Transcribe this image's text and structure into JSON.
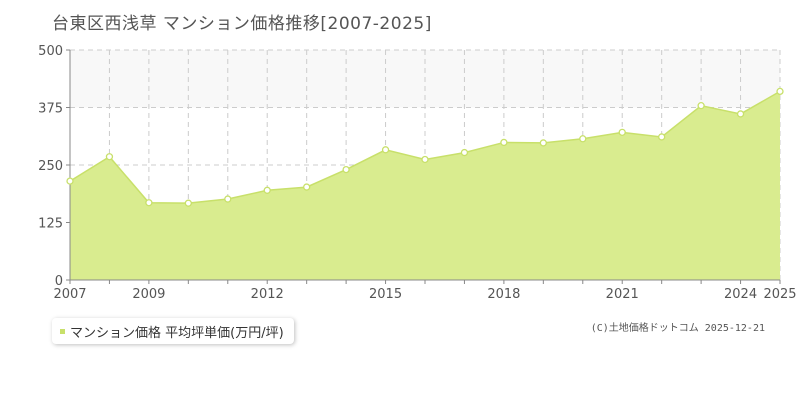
{
  "title": "台東区西浅草 マンション価格推移[2007-2025]",
  "credit": "(C)土地価格ドットコム 2025-12-21",
  "colors": {
    "area_fill": "#d9ec8f",
    "line": "#c8e06a",
    "point_fill": "#ffffff",
    "upper_band": "#f8f8f8",
    "grid": "#cccccc",
    "axis_text": "#555555",
    "legend_marker": "#c8e06a"
  },
  "chart_data": {
    "type": "area",
    "title": "台東区西浅草 マンション価格推移[2007-2025]",
    "xlabel": "",
    "ylabel": "",
    "xlim": [
      2007,
      2025
    ],
    "ylim": [
      0,
      500
    ],
    "yticks": [
      "0",
      "125",
      "250",
      "375",
      "500"
    ],
    "xtick_labels": [
      "2007",
      "2009",
      "2012",
      "2015",
      "2018",
      "2021",
      "2024",
      "2025"
    ],
    "xtick_values": [
      2007,
      2009,
      2012,
      2015,
      2018,
      2021,
      2024,
      2025
    ],
    "grid": true,
    "legend_position": "bottom-left",
    "series": [
      {
        "name": "マンション価格 平均坪単価(万円/坪)",
        "x": [
          2007,
          2008,
          2009,
          2010,
          2011,
          2012,
          2013,
          2014,
          2015,
          2016,
          2017,
          2018,
          2019,
          2020,
          2021,
          2022,
          2023,
          2024,
          2025
        ],
        "values": [
          215,
          268,
          168,
          167,
          176,
          195,
          202,
          240,
          283,
          262,
          277,
          299,
          298,
          307,
          321,
          311,
          379,
          361,
          410
        ]
      }
    ]
  }
}
